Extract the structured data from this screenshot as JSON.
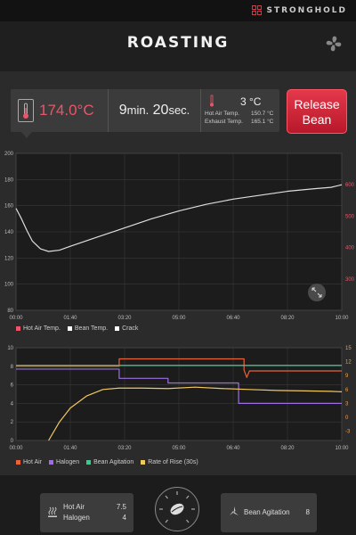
{
  "brand": {
    "name": "STRONGHOLD"
  },
  "header": {
    "title": "ROASTING",
    "fan_icon": "fan-icon"
  },
  "info": {
    "bean_temp_value": "174.0",
    "bean_temp_unit": "°C",
    "time_min": "9",
    "time_min_unit": "min.",
    "time_sec": "20",
    "time_sec_unit": "sec.",
    "ambient_temp": "3 °C",
    "hot_air_label": "Hot Air Temp.",
    "hot_air_value": "150.7 °C",
    "exhaust_label": "Exhaust Temp.",
    "exhaust_value": "165.1 °C"
  },
  "release_button": {
    "line1": "Release",
    "line2": "Bean"
  },
  "chart_data": [
    {
      "type": "line",
      "title": "",
      "x_ticks": [
        "00:00",
        "01:40",
        "03:20",
        "05:00",
        "06:40",
        "08:20",
        "10:00"
      ],
      "x_range_sec": [
        0,
        600
      ],
      "ylim_left": [
        80,
        200
      ],
      "y_ticks_left": [
        80,
        100,
        120,
        140,
        160,
        180,
        200
      ],
      "ylim_right": [
        200,
        700
      ],
      "y_ticks_right": [
        300,
        400,
        500,
        600
      ],
      "grid": true,
      "legend": [
        "Hot Air Temp.",
        "Bean Temp.",
        "Crack"
      ],
      "legend_colors": [
        "#e8566a",
        "#ffffff",
        "#ffffff"
      ],
      "series": [
        {
          "name": "Bean Temp.",
          "color": "#dddddd",
          "x": [
            0,
            10,
            20,
            30,
            45,
            60,
            80,
            100,
            150,
            200,
            250,
            300,
            350,
            400,
            450,
            500,
            550,
            580,
            600
          ],
          "y": [
            158,
            150,
            141,
            133,
            127,
            125,
            126,
            129,
            136,
            143,
            150,
            156,
            161,
            165,
            168,
            171,
            173,
            174,
            176
          ]
        }
      ]
    },
    {
      "type": "line",
      "title": "",
      "x_ticks": [
        "00:00",
        "01:40",
        "03:20",
        "05:00",
        "06:40",
        "08:20",
        "10:00"
      ],
      "x_range_sec": [
        0,
        600
      ],
      "ylim_left": [
        0,
        10
      ],
      "y_ticks_left": [
        0,
        2,
        4,
        6,
        8,
        10
      ],
      "ylim_right": [
        -5,
        15
      ],
      "y_ticks_right": [
        -3,
        0,
        3,
        6,
        9,
        12,
        15
      ],
      "grid": true,
      "legend": [
        "Hot Air",
        "Halogen",
        "Bean Agitation",
        "Rate of Rise (30s)"
      ],
      "legend_colors": [
        "#e8623a",
        "#9b6fe0",
        "#3cc890",
        "#f0c860"
      ],
      "series": [
        {
          "name": "Hot Air",
          "color": "#e8623a",
          "axis": "left",
          "x": [
            0,
            190,
            190,
            420,
            420,
            425,
            430,
            600
          ],
          "y": [
            8,
            8,
            8.8,
            8.8,
            7.6,
            6.8,
            7.5,
            7.5
          ]
        },
        {
          "name": "Halogen",
          "color": "#9b6fe0",
          "axis": "left",
          "x": [
            0,
            190,
            190,
            280,
            280,
            410,
            410,
            600
          ],
          "y": [
            7.7,
            7.7,
            6.7,
            6.7,
            6.2,
            6.2,
            4,
            4
          ]
        },
        {
          "name": "Bean Agitation",
          "color": "#3cc890",
          "axis": "left",
          "x": [
            0,
            600
          ],
          "y": [
            8.1,
            8.1
          ]
        },
        {
          "name": "Rate of Rise (30s)",
          "color": "#f0c860",
          "axis": "right",
          "x": [
            60,
            80,
            100,
            130,
            160,
            190,
            230,
            280,
            330,
            380,
            430,
            480,
            530,
            580,
            600
          ],
          "y": [
            -5,
            -1,
            2,
            4.6,
            6,
            6.3,
            6.3,
            6.2,
            6.5,
            6.2,
            6,
            5.8,
            5.7,
            5.6,
            5.5
          ]
        }
      ]
    }
  ],
  "bottom": {
    "hot_air_label": "Hot Air",
    "hot_air_value": "7.5",
    "halogen_label": "Halogen",
    "halogen_value": "4",
    "agitation_label": "Bean Agitation",
    "agitation_value": "8"
  }
}
